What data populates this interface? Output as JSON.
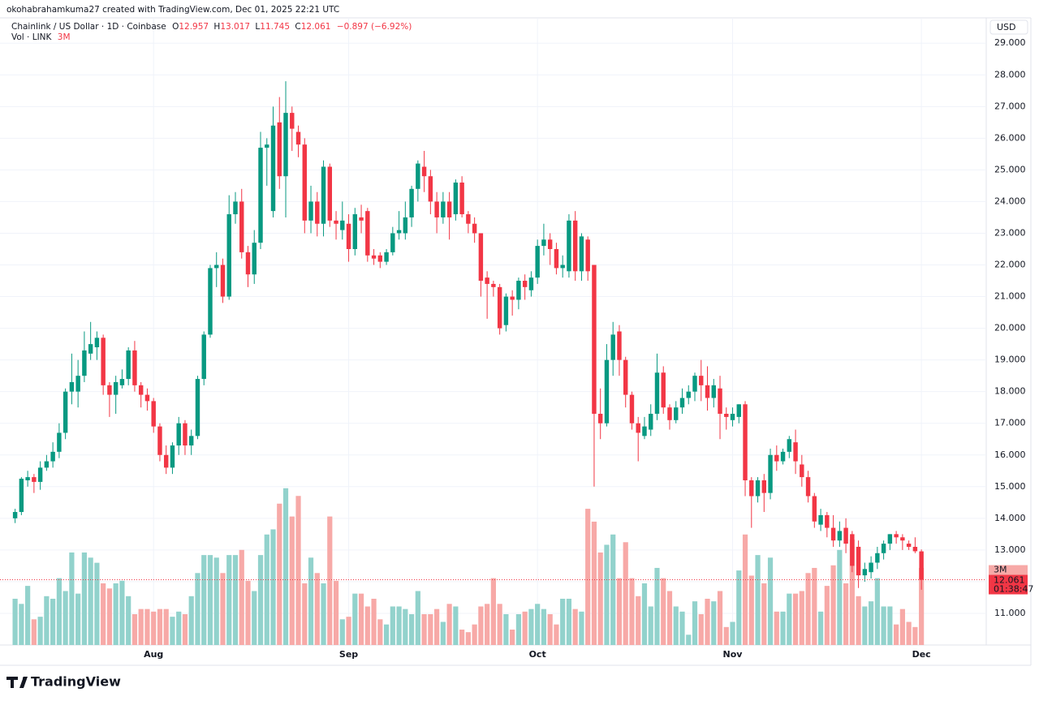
{
  "credit": "okohabrahamkuma27 created with TradingView.com, Dec 01, 2025 22:21 UTC",
  "brand": "TradingView",
  "chart_data": {
    "type": "candlestick",
    "title": "Chainlink / US Dollar · 1D · Coinbase",
    "ohlc_labels": [
      "O",
      "H",
      "L",
      "C"
    ],
    "change": "−0.897 (−6.92%)",
    "volume_title": "Vol · LINK",
    "volume_label": "3M",
    "countdown": "01:38:47",
    "currency": "USD",
    "up_color": "#089981",
    "down_color": "#f23645",
    "volume_up_color": "#92d2cc",
    "volume_down_color": "#f7a9a7",
    "grid": true,
    "xlim": [
      -2.4,
      154.3
    ],
    "xticks": [
      {
        "value": 22,
        "label": "Aug"
      },
      {
        "value": 53,
        "label": "Sep"
      },
      {
        "value": 83,
        "label": "Oct"
      },
      {
        "value": 114,
        "label": "Nov"
      },
      {
        "value": 144,
        "label": "Dec"
      }
    ],
    "ylim": [
      10,
      29.8
    ],
    "yticks": [
      {
        "value": 11,
        "label": "11.000"
      },
      {
        "value": 12,
        "label": "12.000"
      },
      {
        "value": 13,
        "label": "13.000"
      },
      {
        "value": 14,
        "label": "14.000"
      },
      {
        "value": 15,
        "label": "15.000"
      },
      {
        "value": 16,
        "label": "16.000"
      },
      {
        "value": 17,
        "label": "17.000"
      },
      {
        "value": 18,
        "label": "18.000"
      },
      {
        "value": 19,
        "label": "19.000"
      },
      {
        "value": 20,
        "label": "20.000"
      },
      {
        "value": 21,
        "label": "21.000"
      },
      {
        "value": 22,
        "label": "22.000"
      },
      {
        "value": 23,
        "label": "23.000"
      },
      {
        "value": 24,
        "label": "24.000"
      },
      {
        "value": 25,
        "label": "25.000"
      },
      {
        "value": 26,
        "label": "26.000"
      },
      {
        "value": 27,
        "label": "27.000"
      },
      {
        "value": 28,
        "label": "28.000"
      },
      {
        "value": 29,
        "label": "29.000"
      }
    ],
    "volume_ylim": [
      0,
      24.4
    ],
    "open": [
      14.0,
      14.2,
      15.2,
      15.3,
      15.15,
      15.6,
      15.8,
      16.1,
      16.7,
      18.0,
      18.0,
      18.5,
      19.2,
      19.4,
      19.7,
      18.2,
      17.9,
      18.2,
      18.4,
      19.3,
      18.2,
      17.9,
      17.7,
      16.9,
      16.0,
      15.6,
      16.3,
      17.0,
      16.3,
      16.6,
      18.4,
      19.8,
      21.9,
      22.0,
      21.0,
      23.6,
      24.0,
      22.4,
      21.7,
      22.7,
      25.7,
      23.7,
      26.5,
      24.8,
      26.8,
      26.2,
      25.8,
      23.4,
      24.0,
      23.3,
      25.1,
      23.4,
      23.1,
      23.3,
      22.5,
      23.5,
      23.7,
      22.3,
      22.3,
      22.1,
      22.4,
      23.0,
      23.0,
      23.5,
      24.4,
      25.1,
      24.8,
      24.0,
      23.5,
      24.0,
      23.6,
      24.6,
      23.6,
      23.3,
      23.0,
      21.6,
      21.4,
      21.3,
      20.1,
      21.0,
      20.9,
      21.5,
      21.2,
      21.6,
      22.6,
      22.8,
      22.5,
      21.9,
      21.8,
      23.4,
      21.8,
      22.8,
      22.0,
      17.3,
      17.0,
      19.0,
      19.9,
      19.0,
      17.9,
      17.0,
      16.6,
      16.8,
      17.3,
      18.6,
      17.5,
      17.1,
      17.5,
      17.8,
      18.0,
      18.5,
      18.2,
      17.8,
      18.1,
      17.3,
      17.1,
      17.2,
      17.6,
      15.2,
      14.7,
      15.2,
      14.8,
      16.0,
      15.8,
      16.1,
      16.4,
      15.7,
      15.3,
      14.7,
      13.8,
      14.1,
      13.7,
      13.3,
      13.7,
      13.5,
      13.1,
      12.2,
      12.3,
      12.6,
      12.9,
      13.2,
      13.5,
      13.4,
      13.2,
      13.1,
      12.957
    ],
    "high": [
      14.3,
      15.3,
      15.5,
      15.4,
      15.8,
      16.0,
      16.4,
      17.0,
      18.1,
      19.2,
      19.0,
      19.9,
      20.2,
      19.9,
      19.8,
      18.3,
      18.5,
      18.7,
      19.4,
      19.6,
      18.3,
      18.1,
      17.8,
      17.0,
      16.3,
      16.4,
      17.2,
      17.1,
      16.8,
      18.5,
      19.9,
      22.0,
      22.4,
      22.2,
      24.2,
      24.3,
      24.4,
      22.6,
      23.1,
      26.2,
      26.0,
      27.0,
      27.3,
      27.8,
      27.0,
      26.4,
      26.0,
      24.5,
      24.3,
      25.3,
      25.2,
      23.7,
      24.0,
      23.6,
      23.8,
      23.9,
      23.8,
      22.5,
      22.4,
      22.5,
      23.2,
      23.7,
      24.0,
      24.5,
      25.3,
      25.6,
      25.0,
      24.3,
      24.3,
      24.3,
      24.7,
      24.8,
      23.7,
      23.5,
      23.0,
      21.8,
      21.5,
      21.4,
      21.1,
      21.2,
      21.6,
      21.7,
      21.8,
      22.8,
      23.3,
      23.0,
      22.7,
      22.3,
      23.6,
      23.7,
      23.0,
      22.9,
      22.0,
      18.1,
      19.5,
      20.2,
      20.1,
      19.1,
      18.0,
      17.2,
      17.2,
      17.6,
      19.2,
      18.8,
      17.6,
      17.7,
      18.1,
      18.2,
      18.6,
      19.0,
      18.8,
      18.4,
      18.5,
      17.5,
      17.5,
      17.6,
      17.7,
      15.3,
      15.3,
      15.4,
      16.2,
      16.3,
      16.2,
      16.6,
      16.8,
      16.0,
      15.5,
      14.8,
      14.3,
      14.2,
      14.1,
      13.9,
      14.0,
      13.6,
      13.3,
      12.6,
      12.8,
      13.1,
      13.3,
      13.5,
      13.6,
      13.5,
      13.3,
      13.4,
      13.017
    ],
    "low": [
      13.85,
      14.1,
      15.0,
      14.8,
      14.9,
      15.5,
      15.6,
      15.9,
      16.5,
      17.6,
      17.5,
      18.3,
      19.0,
      19.0,
      17.9,
      17.2,
      17.3,
      18.1,
      18.2,
      18.0,
      17.5,
      17.4,
      16.7,
      15.8,
      15.4,
      15.4,
      16.0,
      16.0,
      16.0,
      16.5,
      18.2,
      19.7,
      21.3,
      20.8,
      20.9,
      23.3,
      22.2,
      21.3,
      21.4,
      22.5,
      24.5,
      23.5,
      24.4,
      23.5,
      25.6,
      25.4,
      23.0,
      23.0,
      22.9,
      22.9,
      23.2,
      22.8,
      22.8,
      22.1,
      22.3,
      23.0,
      22.1,
      22.0,
      21.9,
      22.0,
      22.3,
      22.8,
      22.8,
      23.2,
      24.0,
      24.3,
      23.6,
      23.0,
      23.3,
      22.8,
      23.4,
      23.5,
      23.0,
      22.7,
      21.0,
      20.3,
      21.0,
      19.8,
      19.9,
      20.4,
      20.6,
      20.9,
      21.0,
      21.4,
      22.3,
      22.0,
      21.7,
      21.6,
      21.6,
      21.5,
      21.5,
      21.5,
      15.0,
      16.5,
      16.9,
      18.5,
      18.5,
      17.5,
      16.8,
      15.8,
      16.5,
      16.6,
      17.1,
      17.3,
      16.8,
      17.0,
      17.3,
      17.6,
      17.7,
      17.7,
      17.4,
      17.5,
      16.5,
      16.8,
      16.9,
      17.0,
      14.7,
      13.7,
      14.5,
      14.2,
      14.6,
      15.5,
      15.7,
      15.9,
      15.4,
      15.0,
      14.5,
      13.7,
      13.6,
      13.4,
      13.1,
      13.1,
      12.9,
      12.3,
      11.8,
      12.0,
      12.1,
      12.4,
      12.7,
      13.0,
      13.2,
      13.0,
      13.0,
      12.9,
      11.745
    ],
    "close": [
      14.2,
      15.25,
      15.3,
      15.15,
      15.6,
      15.8,
      16.1,
      16.7,
      18.0,
      18.3,
      18.5,
      19.3,
      19.5,
      19.7,
      18.2,
      17.9,
      18.3,
      18.4,
      19.3,
      18.2,
      17.9,
      17.7,
      16.9,
      16.0,
      15.6,
      16.3,
      17.0,
      16.3,
      16.6,
      18.4,
      19.8,
      21.9,
      22.0,
      21.0,
      23.6,
      24.0,
      22.4,
      21.7,
      22.7,
      25.7,
      25.8,
      26.4,
      24.8,
      26.8,
      26.3,
      25.8,
      23.4,
      24.0,
      23.3,
      25.1,
      23.4,
      23.3,
      23.4,
      22.5,
      23.6,
      23.4,
      22.3,
      22.2,
      22.1,
      22.4,
      23.0,
      23.1,
      23.5,
      24.4,
      25.2,
      24.8,
      24.0,
      23.5,
      24.0,
      23.5,
      24.6,
      23.6,
      23.3,
      23.0,
      21.5,
      21.4,
      21.3,
      20.0,
      21.0,
      20.9,
      21.5,
      21.3,
      21.6,
      22.6,
      22.8,
      22.5,
      21.9,
      22.0,
      23.4,
      21.8,
      22.9,
      21.8,
      17.3,
      17.0,
      19.0,
      19.8,
      19.0,
      17.9,
      17.0,
      16.7,
      16.9,
      17.3,
      18.6,
      17.5,
      17.1,
      17.5,
      17.8,
      18.0,
      18.5,
      18.2,
      17.8,
      18.2,
      17.3,
      17.2,
      17.3,
      17.6,
      15.2,
      14.7,
      15.2,
      14.8,
      16.0,
      15.8,
      16.1,
      16.5,
      15.8,
      15.3,
      14.7,
      13.9,
      14.1,
      13.7,
      13.3,
      13.6,
      13.2,
      12.5,
      12.2,
      12.4,
      12.6,
      12.9,
      13.2,
      13.5,
      13.4,
      13.3,
      13.1,
      12.96,
      12.061
    ],
    "volume": [
      1.8,
      1.6,
      2.3,
      1.0,
      1.1,
      1.9,
      1.8,
      2.6,
      2.1,
      3.6,
      2.0,
      3.6,
      3.4,
      3.2,
      2.4,
      2.2,
      2.4,
      2.5,
      1.9,
      1.2,
      1.4,
      1.4,
      1.3,
      1.4,
      1.4,
      1.1,
      1.3,
      1.2,
      1.9,
      2.8,
      3.5,
      3.5,
      3.4,
      2.8,
      3.5,
      3.5,
      3.7,
      2.5,
      2.1,
      3.5,
      4.3,
      4.5,
      5.5,
      6.1,
      5.0,
      5.8,
      2.4,
      3.4,
      2.8,
      2.4,
      5.0,
      2.5,
      1.0,
      1.1,
      2.0,
      2.0,
      1.5,
      1.8,
      1.0,
      0.8,
      1.5,
      1.5,
      1.4,
      1.2,
      2.1,
      1.2,
      1.2,
      1.4,
      0.9,
      1.6,
      1.5,
      0.6,
      0.5,
      0.8,
      1.5,
      1.6,
      2.6,
      1.6,
      1.2,
      0.6,
      1.2,
      1.3,
      1.4,
      1.6,
      1.4,
      1.2,
      0.8,
      1.8,
      1.8,
      1.4,
      1.3,
      5.3,
      4.8,
      3.6,
      3.9,
      4.3,
      2.6,
      4.0,
      2.6,
      1.9,
      2.4,
      1.5,
      3.0,
      2.6,
      2.1,
      1.5,
      1.3,
      0.4,
      1.7,
      1.2,
      1.8,
      1.7,
      2.1,
      0.7,
      0.9,
      2.9,
      4.3,
      2.7,
      3.5,
      2.4,
      3.4,
      1.3,
      1.3,
      2.0,
      2.0,
      2.1,
      2.8,
      3.0,
      1.3,
      2.3,
      3.1,
      3.7,
      2.4,
      4.1,
      1.9,
      1.5,
      1.7,
      2.6,
      1.5,
      1.5,
      0.8,
      1.4,
      0.9,
      0.7,
      3.0
    ]
  }
}
